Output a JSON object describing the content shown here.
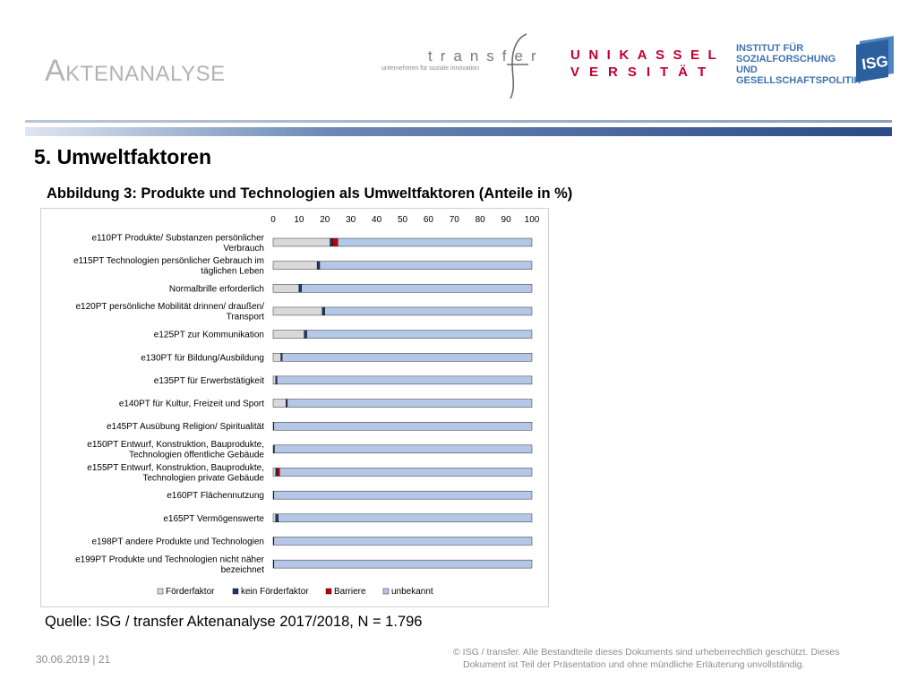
{
  "header": {
    "title": "Aktenanalyse",
    "logo_transfer": {
      "word": "transfer",
      "tagline": "unternehmen für soziale innovation"
    },
    "logo_unikassel": {
      "line1": "UNIKASSEL",
      "line2": "VERSITÄT"
    },
    "logo_isg": {
      "line1": "INSTITUT FÜR",
      "line2": "SOZIALFORSCHUNG UND",
      "line3": "GESELLSCHAFTSPOLITIK",
      "mark": "ISG"
    }
  },
  "section_title": "5. Umweltfaktoren",
  "figure_caption": "Abbildung 3: Produkte und Technologien als Umweltfaktoren (Anteile in %)",
  "chart_data": {
    "type": "bar",
    "orientation": "horizontal",
    "stacked": true,
    "xlim": [
      0,
      100
    ],
    "xticks": [
      "0",
      "10",
      "20",
      "30",
      "40",
      "50",
      "60",
      "70",
      "80",
      "90",
      "100"
    ],
    "x_axis_position": "top",
    "grid": false,
    "legend_position": "bottom",
    "categories": [
      [
        "e110PT Produkte/ Substanzen persönlicher",
        "Verbrauch"
      ],
      [
        "e115PT Technologien persönlicher Gebrauch im",
        "täglichen Leben"
      ],
      [
        "Normalbrille erforderlich"
      ],
      [
        "e120PT persönliche Mobilität drinnen/ draußen/",
        "Transport"
      ],
      [
        "e125PT zur Kommunikation"
      ],
      [
        "e130PT für Bildung/Ausbildung"
      ],
      [
        "e135PT für Erwerbstätigkeit"
      ],
      [
        "e140PT für Kultur, Freizeit und Sport"
      ],
      [
        "e145PT Ausübung Religion/ Spiritualität"
      ],
      [
        "e150PT Entwurf, Konstruktion, Bauprodukte,",
        "Technologien öffentliche Gebäude"
      ],
      [
        "e155PT Entwurf, Konstruktion, Bauprodukte,",
        "Technologien private Gebäude"
      ],
      [
        "e160PT Flächennutzung"
      ],
      [
        "e165PT Vermögenswerte"
      ],
      [
        "e198PT andere Produkte und Technologien"
      ],
      [
        "e199PT Produkte und Technologien nicht näher",
        "bezeichnet"
      ]
    ],
    "series": [
      {
        "name": "Förderfaktor",
        "color": "#d9d9d9",
        "values": [
          22,
          17,
          10,
          19,
          12,
          3,
          1,
          5,
          0,
          0,
          1,
          0,
          1,
          0,
          0
        ]
      },
      {
        "name": "kein Förderfaktor",
        "color": "#1f3a6e",
        "values": [
          1,
          1,
          1,
          1,
          1,
          0.5,
          0.5,
          0.5,
          0.3,
          0.5,
          0.5,
          0.3,
          1,
          0.3,
          0.3
        ]
      },
      {
        "name": "Barriere",
        "color": "#c00000",
        "values": [
          2,
          0,
          0,
          0,
          0,
          0,
          0,
          0,
          0,
          0,
          1,
          0,
          0,
          0,
          0
        ]
      },
      {
        "name": "unbekannt",
        "color": "#b4c7e7",
        "values": [
          75,
          82,
          89,
          80,
          87,
          96.5,
          98.5,
          94.5,
          99.7,
          99.5,
          97.5,
          99.7,
          98,
          99.7,
          99.7
        ]
      }
    ]
  },
  "source_text": "Quelle: ISG / transfer Aktenanalyse 2017/2018, N = 1.796",
  "footer": {
    "date_page": "30.06.2019 | 21",
    "copyright_line1": "© ISG / transfer. Alle Bestandteile dieses Dokuments sind urheberrechtlich geschützt. Dieses",
    "copyright_line2": "Dokument ist Teil der Präsentation und ohne mündliche Erläuterung unvollständig."
  }
}
